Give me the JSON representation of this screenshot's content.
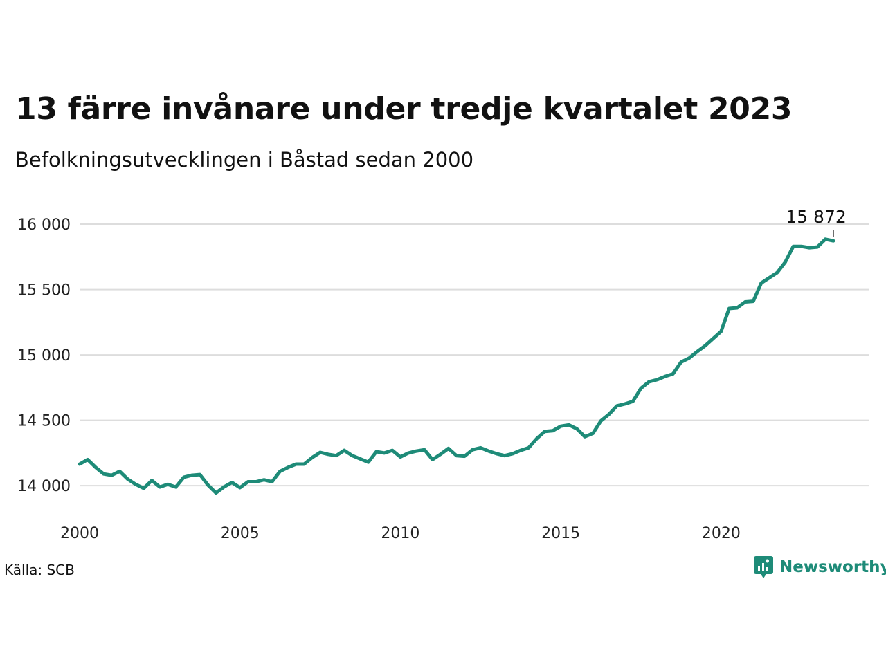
{
  "title": "13 färre invånare under tredje kvartalet 2023",
  "subtitle": "Befolkningsutvecklingen i Båstad sedan 2000",
  "source": "Källa: SCB",
  "brand": {
    "name": "Newsworthy",
    "icon": "newsworthy-logo-icon",
    "color": "#1e8b78"
  },
  "colors": {
    "line": "#1e8b78",
    "grid": "#dddddd"
  },
  "chart_data": {
    "type": "line",
    "xlabel": "",
    "ylabel": "",
    "xlim": [
      2000,
      2024.6
    ],
    "ylim": [
      13800,
      16180
    ],
    "yticks": [
      14000,
      14500,
      15000,
      15500,
      16000
    ],
    "ytick_labels": [
      "14 000",
      "14 500",
      "15 000",
      "15 500",
      "16 000"
    ],
    "xticks": [
      2000,
      2005,
      2010,
      2015,
      2020
    ],
    "xtick_labels": [
      "2000",
      "2005",
      "2010",
      "2015",
      "2020"
    ],
    "grid": "horizontal",
    "end_label": "15 872",
    "series": [
      {
        "x": [
          2000.0,
          2000.25,
          2000.5,
          2000.75,
          2001.0,
          2001.25,
          2001.5,
          2001.75,
          2002.0,
          2002.25,
          2002.5,
          2002.75,
          2003.0,
          2003.25,
          2003.5,
          2003.75,
          2004.0,
          2004.25,
          2004.5,
          2004.75,
          2005.0,
          2005.25,
          2005.5,
          2005.75,
          2006.0,
          2006.25,
          2006.5,
          2006.75,
          2007.0,
          2007.25,
          2007.5,
          2007.75,
          2008.0,
          2008.25,
          2008.5,
          2008.75,
          2009.0,
          2009.25,
          2009.5,
          2009.75,
          2010.0,
          2010.25,
          2010.5,
          2010.75,
          2011.0,
          2011.25,
          2011.5,
          2011.75,
          2012.0,
          2012.25,
          2012.5,
          2012.75,
          2013.0,
          2013.25,
          2013.5,
          2013.75,
          2014.0,
          2014.25,
          2014.5,
          2014.75,
          2015.0,
          2015.25,
          2015.5,
          2015.75,
          2016.0,
          2016.25,
          2016.5,
          2016.75,
          2017.0,
          2017.25,
          2017.5,
          2017.75,
          2018.0,
          2018.25,
          2018.5,
          2018.75,
          2019.0,
          2019.25,
          2019.5,
          2019.75,
          2020.0,
          2020.25,
          2020.5,
          2020.75,
          2021.0,
          2021.25,
          2021.5,
          2021.75,
          2022.0,
          2022.25,
          2022.5,
          2022.75,
          2023.0,
          2023.25,
          2023.5
        ],
        "y": [
          14165,
          14200,
          14140,
          14090,
          14080,
          14110,
          14050,
          14010,
          13980,
          14040,
          13990,
          14010,
          13990,
          14065,
          14080,
          14085,
          14005,
          13945,
          13990,
          14025,
          13985,
          14030,
          14030,
          14045,
          14030,
          14110,
          14140,
          14165,
          14165,
          14215,
          14255,
          14240,
          14230,
          14270,
          14230,
          14205,
          14180,
          14260,
          14250,
          14270,
          14220,
          14250,
          14265,
          14275,
          14200,
          14240,
          14285,
          14230,
          14225,
          14275,
          14290,
          14265,
          14245,
          14230,
          14245,
          14270,
          14290,
          14360,
          14415,
          14420,
          14455,
          14465,
          14435,
          14375,
          14400,
          14495,
          14545,
          14610,
          14625,
          14645,
          14745,
          14795,
          14810,
          14835,
          14855,
          14945,
          14975,
          15025,
          15070,
          15125,
          15180,
          15355,
          15360,
          15405,
          15410,
          15550,
          15590,
          15630,
          15710,
          15830,
          15830,
          15820,
          15825,
          15885,
          15872
        ]
      }
    ]
  }
}
